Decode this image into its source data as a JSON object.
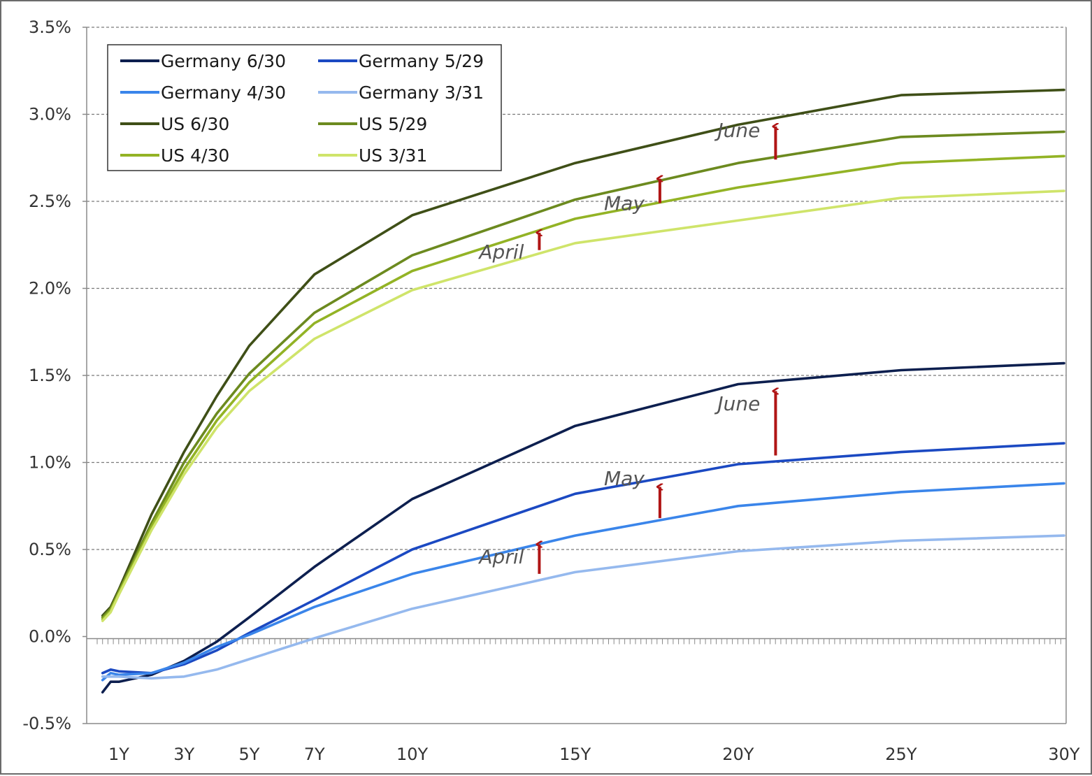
{
  "chart_data": {
    "type": "line",
    "title": "",
    "xlabel": "",
    "ylabel": "",
    "x_tick_labels": [
      "1Y",
      "3Y",
      "5Y",
      "7Y",
      "10Y",
      "15Y",
      "20Y",
      "25Y",
      "30Y"
    ],
    "x_tick_values": [
      1,
      3,
      5,
      7,
      10,
      15,
      20,
      25,
      30
    ],
    "y_tick_labels": [
      "-0.5%",
      "0.0%",
      "0.5%",
      "1.0%",
      "1.5%",
      "2.0%",
      "2.5%",
      "3.0%",
      "3.5%"
    ],
    "y_tick_values": [
      -0.5,
      0.0,
      0.5,
      1.0,
      1.5,
      2.0,
      2.5,
      3.0,
      3.5
    ],
    "xlim": [
      0.3,
      30
    ],
    "ylim": [
      -0.5,
      3.5
    ],
    "grid": "horizontal dashed",
    "legend_position": "top-left",
    "series": [
      {
        "name": "Germany 6/30",
        "color": "#0d1f4f",
        "x": [
          0.5,
          0.75,
          1,
          2,
          3,
          4,
          5,
          7,
          10,
          15,
          20,
          25,
          30
        ],
        "y": [
          -0.32,
          -0.26,
          -0.26,
          -0.22,
          -0.14,
          -0.03,
          0.11,
          0.4,
          0.79,
          1.21,
          1.45,
          1.53,
          1.57
        ]
      },
      {
        "name": "Germany 5/29",
        "color": "#1b49c2",
        "x": [
          0.5,
          0.75,
          1,
          2,
          3,
          4,
          5,
          7,
          10,
          15,
          20,
          25,
          30
        ],
        "y": [
          -0.21,
          -0.19,
          -0.2,
          -0.21,
          -0.16,
          -0.08,
          0.02,
          0.21,
          0.5,
          0.82,
          0.99,
          1.06,
          1.11
        ]
      },
      {
        "name": "Germany 4/30",
        "color": "#3a85ea",
        "x": [
          0.5,
          0.75,
          1,
          2,
          3,
          4,
          5,
          7,
          10,
          15,
          20,
          25,
          30
        ],
        "y": [
          -0.25,
          -0.21,
          -0.22,
          -0.21,
          -0.15,
          -0.06,
          0.01,
          0.17,
          0.36,
          0.58,
          0.75,
          0.83,
          0.88
        ]
      },
      {
        "name": "Germany 3/31",
        "color": "#95b9ee",
        "x": [
          0.5,
          0.75,
          1,
          2,
          3,
          4,
          5,
          7,
          10,
          15,
          20,
          25,
          30
        ],
        "y": [
          -0.23,
          -0.23,
          -0.23,
          -0.24,
          -0.23,
          -0.19,
          -0.13,
          -0.01,
          0.16,
          0.37,
          0.49,
          0.55,
          0.58
        ]
      },
      {
        "name": "US 6/30",
        "color": "#3f4f17",
        "x": [
          0.5,
          0.75,
          1,
          2,
          3,
          4,
          5,
          7,
          10,
          15,
          20,
          25,
          30
        ],
        "y": [
          0.12,
          0.17,
          0.27,
          0.7,
          1.06,
          1.38,
          1.67,
          2.08,
          2.42,
          2.72,
          2.94,
          3.11,
          3.14
        ]
      },
      {
        "name": "US 5/29",
        "color": "#6c8a1f",
        "x": [
          0.5,
          0.75,
          1,
          2,
          3,
          4,
          5,
          7,
          10,
          15,
          20,
          25,
          30
        ],
        "y": [
          0.11,
          0.16,
          0.26,
          0.65,
          1.0,
          1.28,
          1.51,
          1.86,
          2.19,
          2.51,
          2.72,
          2.87,
          2.9
        ]
      },
      {
        "name": "US 4/30",
        "color": "#93b325",
        "x": [
          0.5,
          0.75,
          1,
          2,
          3,
          4,
          5,
          7,
          10,
          15,
          20,
          25,
          30
        ],
        "y": [
          0.1,
          0.15,
          0.25,
          0.63,
          0.96,
          1.24,
          1.46,
          1.8,
          2.1,
          2.4,
          2.58,
          2.72,
          2.76
        ]
      },
      {
        "name": "US 3/31",
        "color": "#cfe46a",
        "x": [
          0.5,
          0.75,
          1,
          2,
          3,
          4,
          5,
          7,
          10,
          15,
          20,
          25,
          30
        ],
        "y": [
          0.09,
          0.14,
          0.24,
          0.61,
          0.93,
          1.2,
          1.41,
          1.71,
          1.99,
          2.26,
          2.39,
          2.52,
          2.56
        ]
      }
    ],
    "annotations": [
      {
        "text": "June",
        "x": 21.15,
        "y": 2.87,
        "group": "US",
        "arrow_from": 2.74,
        "arrow_to": 2.93
      },
      {
        "text": "May",
        "x": 17.6,
        "y": 2.45,
        "group": "US",
        "arrow_from": 2.49,
        "arrow_to": 2.63
      },
      {
        "text": "April",
        "x": 13.9,
        "y": 2.17,
        "group": "US",
        "arrow_from": 2.22,
        "arrow_to": 2.32
      },
      {
        "text": "June",
        "x": 21.15,
        "y": 1.3,
        "group": "Germany",
        "arrow_from": 1.04,
        "arrow_to": 1.41
      },
      {
        "text": "May",
        "x": 17.6,
        "y": 0.87,
        "group": "Germany",
        "arrow_from": 0.68,
        "arrow_to": 0.86
      },
      {
        "text": "April",
        "x": 13.9,
        "y": 0.42,
        "group": "Germany",
        "arrow_from": 0.36,
        "arrow_to": 0.53
      }
    ],
    "arrow_color": "#b01515"
  }
}
